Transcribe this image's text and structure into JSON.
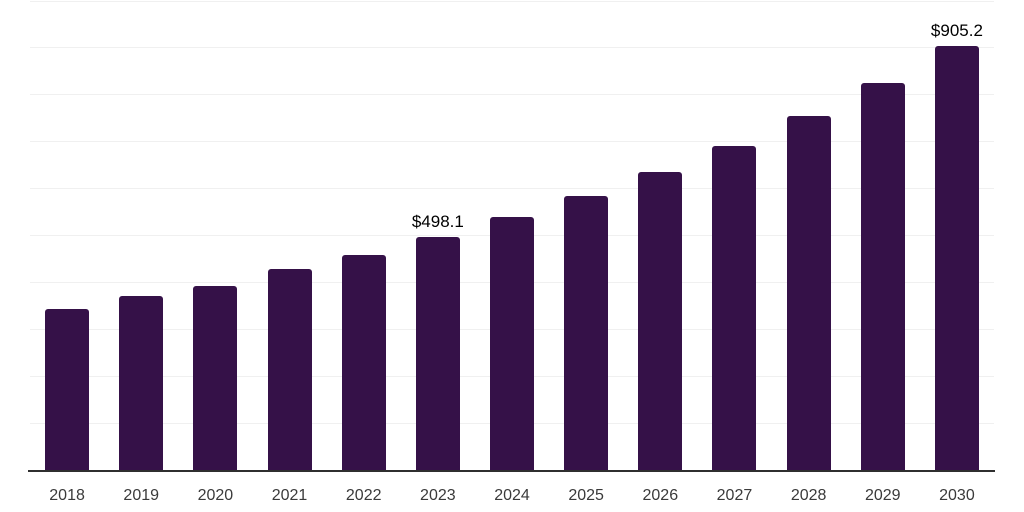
{
  "chart_data": {
    "type": "bar",
    "title": "",
    "xlabel": "",
    "ylabel": "",
    "categories": [
      "2018",
      "2019",
      "2020",
      "2021",
      "2022",
      "2023",
      "2024",
      "2025",
      "2026",
      "2027",
      "2028",
      "2029",
      "2030"
    ],
    "values": [
      345,
      372,
      394,
      430,
      460,
      498.1,
      540,
      585,
      636,
      692,
      755,
      826,
      905.2
    ],
    "data_labels": {
      "2023": "$498.1",
      "2030": "$905.2"
    },
    "value_prefix": "$",
    "ylim": [
      0,
      1000
    ],
    "gridline_interval": 100,
    "grid": true,
    "legend_position": "none",
    "colors": {
      "bar": "#351148",
      "gridline": "#f0f0f0",
      "axis_line": "#2f2f2f",
      "tick_label": "#3a3a3a",
      "data_label": "#000000",
      "background": "#ffffff"
    }
  }
}
